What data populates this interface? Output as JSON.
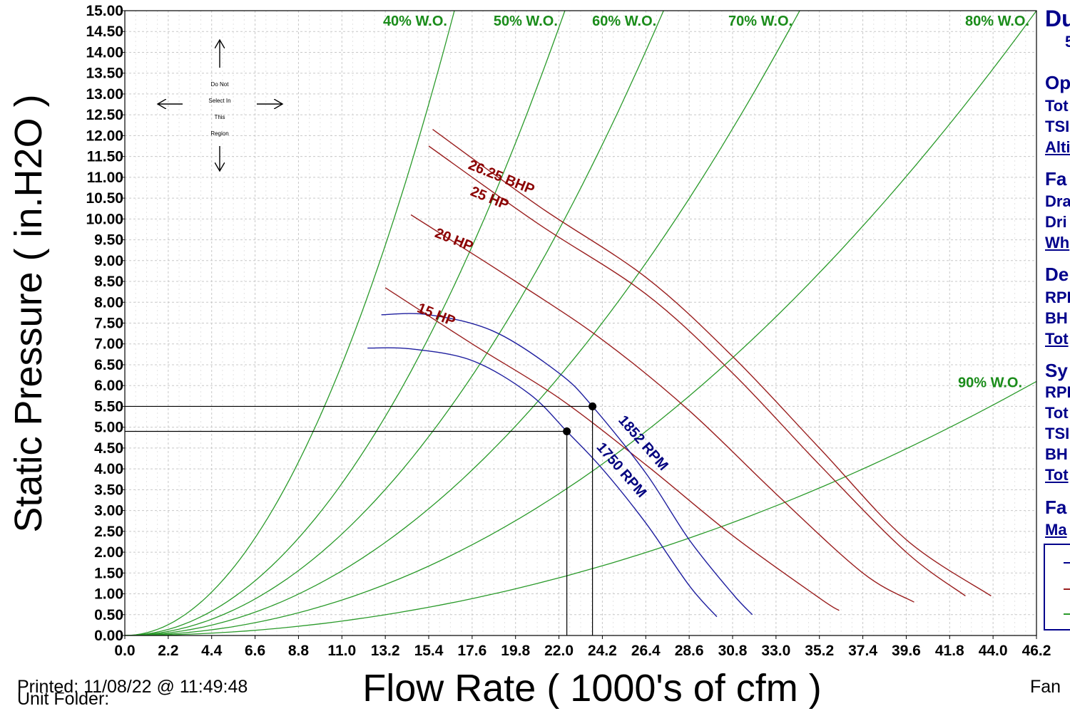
{
  "chart_data": {
    "type": "line",
    "xlabel": "Flow Rate ( 1000's of cfm )",
    "ylabel": "Static Pressure ( in.H2O )",
    "xlim": [
      0,
      46.2
    ],
    "ylim": [
      0,
      15
    ],
    "x_ticks": [
      "0.0",
      "2.2",
      "4.4",
      "6.6",
      "8.8",
      "11.0",
      "13.2",
      "15.4",
      "17.6",
      "19.8",
      "22.0",
      "24.2",
      "26.4",
      "28.6",
      "30.8",
      "33.0",
      "35.2",
      "37.4",
      "39.6",
      "41.8",
      "44.0",
      "46.2"
    ],
    "y_ticks": [
      "0.00",
      "0.50",
      "1.00",
      "1.50",
      "2.00",
      "2.50",
      "3.00",
      "3.50",
      "4.00",
      "4.50",
      "5.00",
      "5.50",
      "6.00",
      "6.50",
      "7.00",
      "7.50",
      "8.00",
      "8.50",
      "9.00",
      "9.50",
      "10.00",
      "10.50",
      "11.00",
      "11.50",
      "12.00",
      "12.50",
      "13.00",
      "13.50",
      "14.00",
      "14.50",
      "15.00"
    ],
    "grid": true,
    "colors": {
      "fan_curve": "#1f1f9f",
      "hp_curve": "#9a1f1f",
      "wide_open": "#2a9a2a",
      "operating_point": "#000000"
    },
    "wide_open_curves": [
      {
        "name": "40% W.O.",
        "end": [
          16.7,
          15.0
        ]
      },
      {
        "name": "50% W.O.",
        "end": [
          22.3,
          15.0
        ]
      },
      {
        "name": "60% W.O.",
        "end": [
          27.3,
          15.0
        ]
      },
      {
        "name": "70% W.O.",
        "end": [
          34.2,
          15.0
        ]
      },
      {
        "name": "80% W.O.",
        "end": [
          46.2,
          15.0
        ]
      },
      {
        "name": "90% W.O.",
        "end": [
          46.2,
          6.1
        ]
      }
    ],
    "hp_curves": [
      {
        "name": "15 HP",
        "points": [
          [
            13.2,
            8.35
          ],
          [
            17.6,
            7.0
          ],
          [
            22.0,
            5.7
          ],
          [
            26.4,
            4.1
          ],
          [
            30.8,
            2.4
          ],
          [
            35.2,
            0.9
          ],
          [
            36.2,
            0.6
          ]
        ]
      },
      {
        "name": "20 HP",
        "points": [
          [
            14.5,
            10.1
          ],
          [
            19.8,
            8.5
          ],
          [
            24.2,
            7.1
          ],
          [
            28.6,
            5.4
          ],
          [
            33.0,
            3.4
          ],
          [
            37.4,
            1.5
          ],
          [
            40.0,
            0.8
          ]
        ]
      },
      {
        "name": "25 HP",
        "points": [
          [
            15.4,
            11.75
          ],
          [
            20.9,
            9.9
          ],
          [
            26.4,
            8.2
          ],
          [
            30.8,
            6.3
          ],
          [
            35.2,
            4.1
          ],
          [
            39.6,
            2.0
          ],
          [
            42.6,
            0.95
          ]
        ]
      },
      {
        "name": "26.25 BHP",
        "points": [
          [
            15.6,
            12.15
          ],
          [
            21.0,
            10.3
          ],
          [
            26.4,
            8.6
          ],
          [
            30.8,
            6.7
          ],
          [
            35.2,
            4.5
          ],
          [
            39.6,
            2.3
          ],
          [
            43.9,
            0.95
          ]
        ]
      }
    ],
    "fan_curves": [
      {
        "name": "1750 RPM",
        "points": [
          [
            12.3,
            6.9
          ],
          [
            14.5,
            6.88
          ],
          [
            17.6,
            6.6
          ],
          [
            20.5,
            5.8
          ],
          [
            22.4,
            4.9
          ],
          [
            24.2,
            4.0
          ],
          [
            26.4,
            2.7
          ],
          [
            28.6,
            1.2
          ],
          [
            30.0,
            0.45
          ]
        ]
      },
      {
        "name": "1852 RPM",
        "points": [
          [
            13.0,
            7.7
          ],
          [
            15.4,
            7.7
          ],
          [
            18.7,
            7.3
          ],
          [
            22.0,
            6.3
          ],
          [
            23.7,
            5.5
          ],
          [
            26.4,
            3.9
          ],
          [
            28.6,
            2.3
          ],
          [
            30.8,
            1.0
          ],
          [
            31.8,
            0.5
          ]
        ]
      }
    ],
    "operating_points": [
      {
        "x": 22.4,
        "y": 4.9
      },
      {
        "x": 23.7,
        "y": 5.5
      }
    ],
    "overlay_note": [
      "Do Not",
      "Select In",
      "This",
      "Region"
    ]
  },
  "footer": {
    "printed": "Printed: 11/08/22 @ 11:49:48",
    "unit_folder": "Unit Folder:",
    "right_text": "Fan"
  },
  "side_panel": {
    "title": "Du",
    "title_sub": "5",
    "sections": [
      {
        "heading": "Op",
        "rows": [
          "Tot",
          "TSI",
          "Alti"
        ]
      },
      {
        "heading": "Fa",
        "rows": [
          "Dra",
          "Dri",
          "Wh"
        ]
      },
      {
        "heading": "De",
        "rows": [
          "RPI",
          "BH",
          "Tot"
        ]
      },
      {
        "heading": "Sy",
        "rows": [
          "RPI",
          "Tot",
          "TSI",
          "BH",
          "Tot"
        ]
      },
      {
        "heading": "Fa",
        "rows": [
          "Ma"
        ]
      }
    ]
  }
}
